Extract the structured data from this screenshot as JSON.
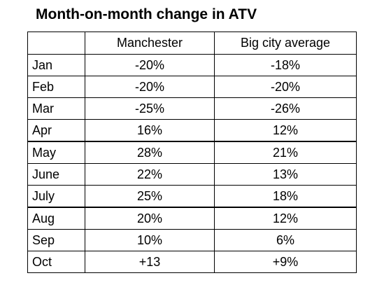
{
  "title": "Month-on-month change in ATV",
  "columns": [
    "",
    "Manchester",
    "Big city average"
  ],
  "rows": [
    {
      "month": "Jan",
      "manchester": "-20%",
      "big_city": "-18%"
    },
    {
      "month": "Feb",
      "manchester": "-20%",
      "big_city": "-20%"
    },
    {
      "month": "Mar",
      "manchester": "-25%",
      "big_city": "-26%"
    },
    {
      "month": "Apr",
      "manchester": "16%",
      "big_city": "12%"
    },
    {
      "month": "May",
      "manchester": "28%",
      "big_city": "21%"
    },
    {
      "month": "June",
      "manchester": "22%",
      "big_city": "13%"
    },
    {
      "month": "July",
      "manchester": "25%",
      "big_city": "18%"
    },
    {
      "month": "Aug",
      "manchester": "20%",
      "big_city": "12%"
    },
    {
      "month": "Sep",
      "manchester": "10%",
      "big_city": "6%"
    },
    {
      "month": "Oct",
      "manchester": "+13",
      "big_city": "+9%"
    }
  ]
}
